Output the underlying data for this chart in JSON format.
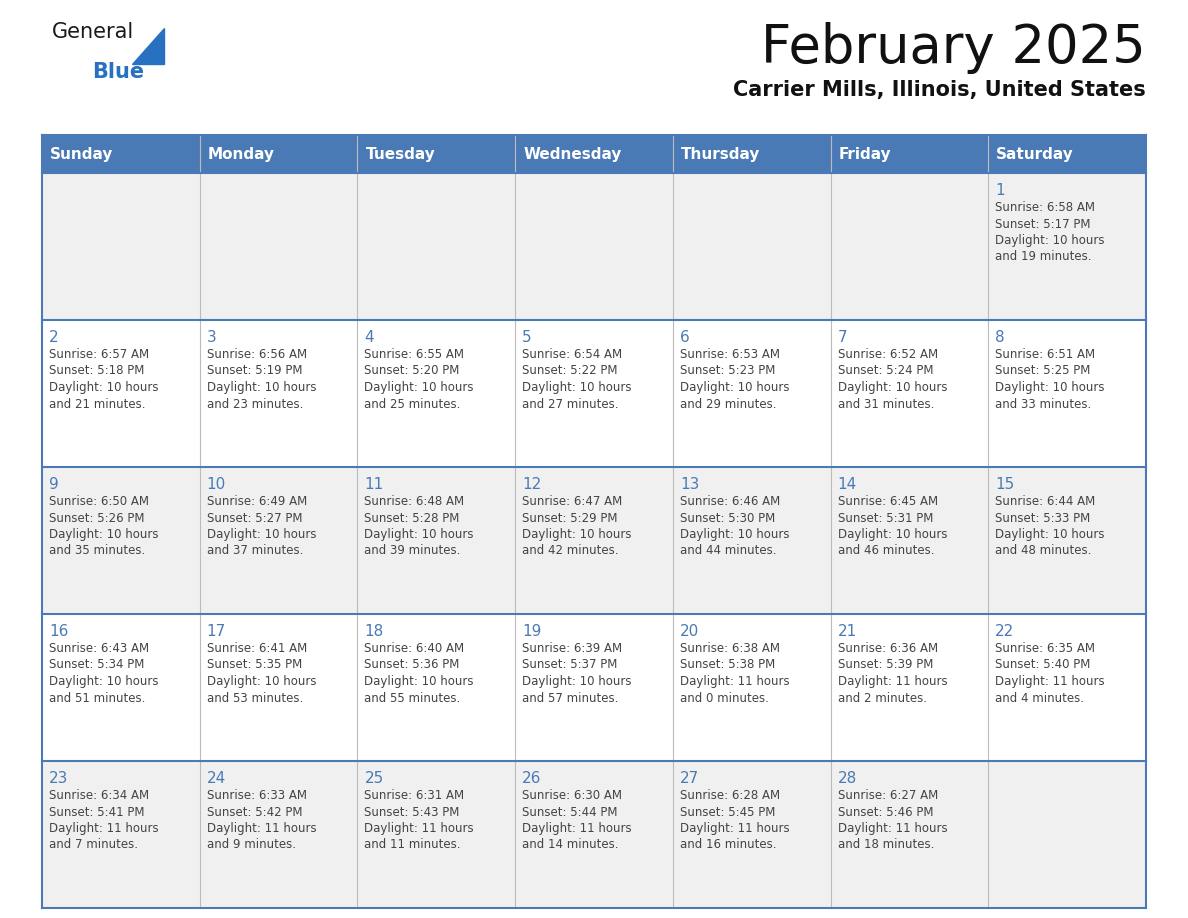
{
  "title": "February 2025",
  "subtitle": "Carrier Mills, Illinois, United States",
  "days_of_week": [
    "Sunday",
    "Monday",
    "Tuesday",
    "Wednesday",
    "Thursday",
    "Friday",
    "Saturday"
  ],
  "header_bg_color": "#4a7ab5",
  "header_text_color": "#ffffff",
  "cell_bg_even": "#f0f0f0",
  "cell_bg_odd": "#ffffff",
  "cell_border_color": "#4a7ab5",
  "day_number_color": "#4a7ab5",
  "text_color": "#444444",
  "logo_general_color": "#1a1a1a",
  "logo_blue_color": "#2870c0",
  "calendar_data": [
    {
      "day": 1,
      "week": 0,
      "dow": 6,
      "sunrise": "6:58 AM",
      "sunset": "5:17 PM",
      "daylight_hours": 10,
      "daylight_minutes": 19
    },
    {
      "day": 2,
      "week": 1,
      "dow": 0,
      "sunrise": "6:57 AM",
      "sunset": "5:18 PM",
      "daylight_hours": 10,
      "daylight_minutes": 21
    },
    {
      "day": 3,
      "week": 1,
      "dow": 1,
      "sunrise": "6:56 AM",
      "sunset": "5:19 PM",
      "daylight_hours": 10,
      "daylight_minutes": 23
    },
    {
      "day": 4,
      "week": 1,
      "dow": 2,
      "sunrise": "6:55 AM",
      "sunset": "5:20 PM",
      "daylight_hours": 10,
      "daylight_minutes": 25
    },
    {
      "day": 5,
      "week": 1,
      "dow": 3,
      "sunrise": "6:54 AM",
      "sunset": "5:22 PM",
      "daylight_hours": 10,
      "daylight_minutes": 27
    },
    {
      "day": 6,
      "week": 1,
      "dow": 4,
      "sunrise": "6:53 AM",
      "sunset": "5:23 PM",
      "daylight_hours": 10,
      "daylight_minutes": 29
    },
    {
      "day": 7,
      "week": 1,
      "dow": 5,
      "sunrise": "6:52 AM",
      "sunset": "5:24 PM",
      "daylight_hours": 10,
      "daylight_minutes": 31
    },
    {
      "day": 8,
      "week": 1,
      "dow": 6,
      "sunrise": "6:51 AM",
      "sunset": "5:25 PM",
      "daylight_hours": 10,
      "daylight_minutes": 33
    },
    {
      "day": 9,
      "week": 2,
      "dow": 0,
      "sunrise": "6:50 AM",
      "sunset": "5:26 PM",
      "daylight_hours": 10,
      "daylight_minutes": 35
    },
    {
      "day": 10,
      "week": 2,
      "dow": 1,
      "sunrise": "6:49 AM",
      "sunset": "5:27 PM",
      "daylight_hours": 10,
      "daylight_minutes": 37
    },
    {
      "day": 11,
      "week": 2,
      "dow": 2,
      "sunrise": "6:48 AM",
      "sunset": "5:28 PM",
      "daylight_hours": 10,
      "daylight_minutes": 39
    },
    {
      "day": 12,
      "week": 2,
      "dow": 3,
      "sunrise": "6:47 AM",
      "sunset": "5:29 PM",
      "daylight_hours": 10,
      "daylight_minutes": 42
    },
    {
      "day": 13,
      "week": 2,
      "dow": 4,
      "sunrise": "6:46 AM",
      "sunset": "5:30 PM",
      "daylight_hours": 10,
      "daylight_minutes": 44
    },
    {
      "day": 14,
      "week": 2,
      "dow": 5,
      "sunrise": "6:45 AM",
      "sunset": "5:31 PM",
      "daylight_hours": 10,
      "daylight_minutes": 46
    },
    {
      "day": 15,
      "week": 2,
      "dow": 6,
      "sunrise": "6:44 AM",
      "sunset": "5:33 PM",
      "daylight_hours": 10,
      "daylight_minutes": 48
    },
    {
      "day": 16,
      "week": 3,
      "dow": 0,
      "sunrise": "6:43 AM",
      "sunset": "5:34 PM",
      "daylight_hours": 10,
      "daylight_minutes": 51
    },
    {
      "day": 17,
      "week": 3,
      "dow": 1,
      "sunrise": "6:41 AM",
      "sunset": "5:35 PM",
      "daylight_hours": 10,
      "daylight_minutes": 53
    },
    {
      "day": 18,
      "week": 3,
      "dow": 2,
      "sunrise": "6:40 AM",
      "sunset": "5:36 PM",
      "daylight_hours": 10,
      "daylight_minutes": 55
    },
    {
      "day": 19,
      "week": 3,
      "dow": 3,
      "sunrise": "6:39 AM",
      "sunset": "5:37 PM",
      "daylight_hours": 10,
      "daylight_minutes": 57
    },
    {
      "day": 20,
      "week": 3,
      "dow": 4,
      "sunrise": "6:38 AM",
      "sunset": "5:38 PM",
      "daylight_hours": 11,
      "daylight_minutes": 0
    },
    {
      "day": 21,
      "week": 3,
      "dow": 5,
      "sunrise": "6:36 AM",
      "sunset": "5:39 PM",
      "daylight_hours": 11,
      "daylight_minutes": 2
    },
    {
      "day": 22,
      "week": 3,
      "dow": 6,
      "sunrise": "6:35 AM",
      "sunset": "5:40 PM",
      "daylight_hours": 11,
      "daylight_minutes": 4
    },
    {
      "day": 23,
      "week": 4,
      "dow": 0,
      "sunrise": "6:34 AM",
      "sunset": "5:41 PM",
      "daylight_hours": 11,
      "daylight_minutes": 7
    },
    {
      "day": 24,
      "week": 4,
      "dow": 1,
      "sunrise": "6:33 AM",
      "sunset": "5:42 PM",
      "daylight_hours": 11,
      "daylight_minutes": 9
    },
    {
      "day": 25,
      "week": 4,
      "dow": 2,
      "sunrise": "6:31 AM",
      "sunset": "5:43 PM",
      "daylight_hours": 11,
      "daylight_minutes": 11
    },
    {
      "day": 26,
      "week": 4,
      "dow": 3,
      "sunrise": "6:30 AM",
      "sunset": "5:44 PM",
      "daylight_hours": 11,
      "daylight_minutes": 14
    },
    {
      "day": 27,
      "week": 4,
      "dow": 4,
      "sunrise": "6:28 AM",
      "sunset": "5:45 PM",
      "daylight_hours": 11,
      "daylight_minutes": 16
    },
    {
      "day": 28,
      "week": 4,
      "dow": 5,
      "sunrise": "6:27 AM",
      "sunset": "5:46 PM",
      "daylight_hours": 11,
      "daylight_minutes": 18
    }
  ]
}
